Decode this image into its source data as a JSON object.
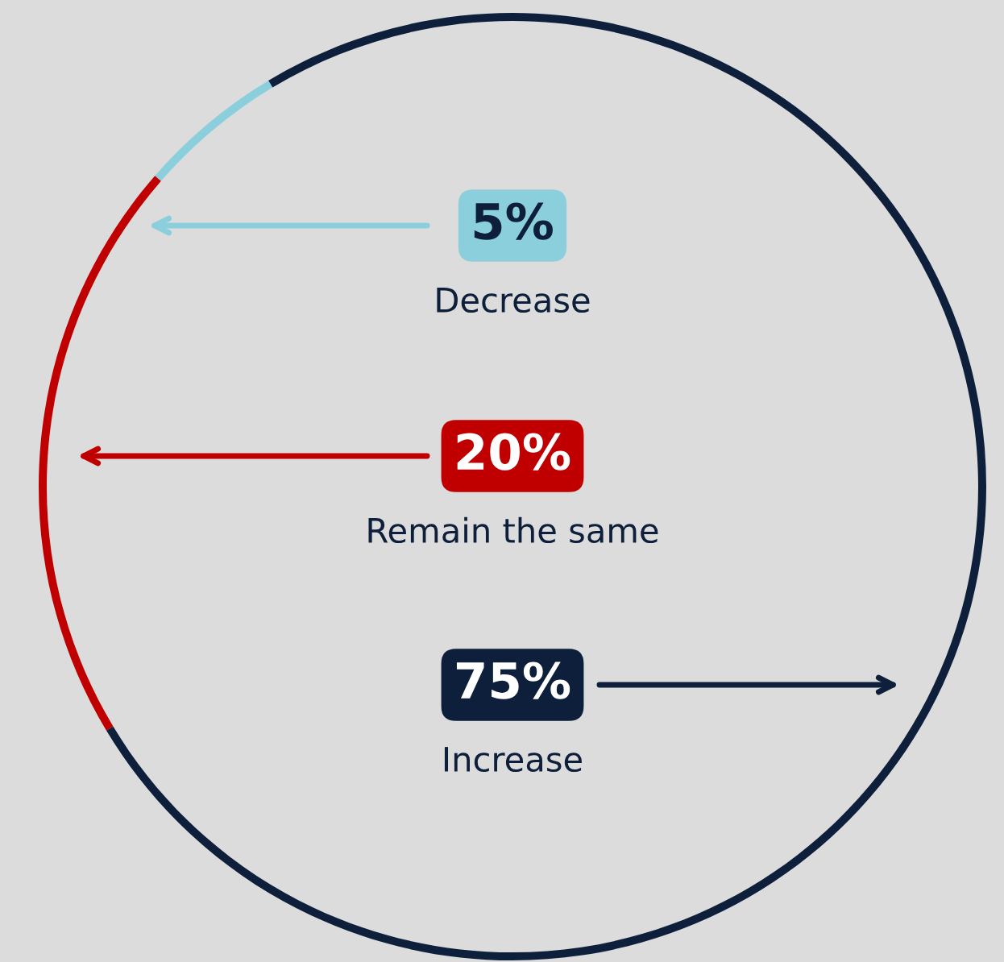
{
  "chart_data": {
    "type": "donut",
    "categories": [
      "Decrease",
      "Remain the same",
      "Increase"
    ],
    "values": [
      5,
      20,
      75
    ],
    "value_labels": [
      "5%",
      "20%",
      "75%"
    ],
    "colors": [
      "#8ccfdc",
      "#c00000",
      "#0d1f3a"
    ],
    "legend": "center"
  }
}
